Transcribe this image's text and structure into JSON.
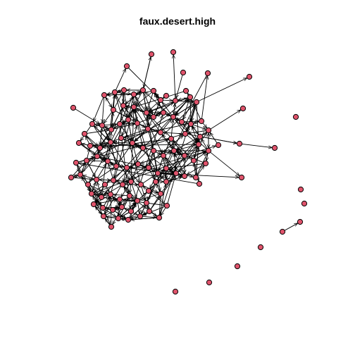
{
  "title": "faux.desert.high",
  "colors": {
    "node_fill": "#DF536B",
    "node_stroke": "#000000",
    "edge": "#000000",
    "background": "#FFFFFF"
  },
  "graph": {
    "directed": true,
    "node_shape": "circle",
    "layout": "force-directed",
    "note": ""
  }
}
